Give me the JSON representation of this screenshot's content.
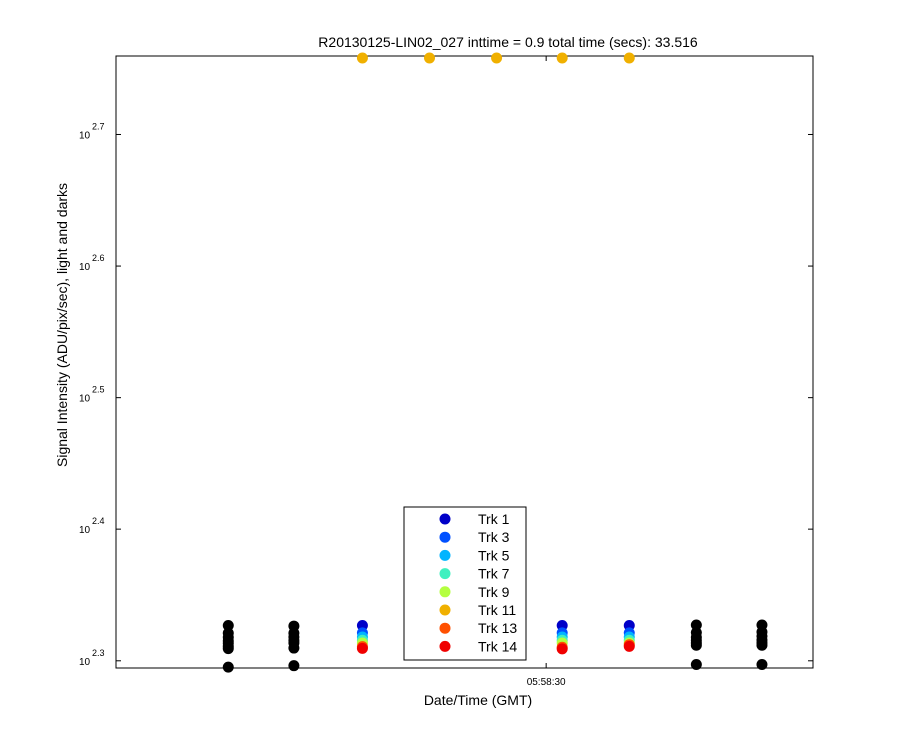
{
  "chart_data": {
    "type": "scatter",
    "title": "R20130125-LIN02_027 inttime = 0.9 total time (secs): 33.516",
    "xlabel": "Date/Time (GMT)",
    "ylabel": "Signal Intensity (ADU/pix/sec), light and darks",
    "y_scale": "log",
    "ylim": [
      197,
      575
    ],
    "y_tick_base": "10",
    "y_ticks": [
      {
        "exp": "2.3",
        "value": 199.5
      },
      {
        "exp": "2.4",
        "value": 251.2
      },
      {
        "exp": "2.5",
        "value": 316.2
      },
      {
        "exp": "2.6",
        "value": 398.1
      },
      {
        "exp": "2.7",
        "value": 501.2
      }
    ],
    "x_unit": "seconds",
    "xlim": [
      0,
      47.8
    ],
    "x_ticks": [
      {
        "label": "05:58:30",
        "x": 29.5
      }
    ],
    "grid": false,
    "legend_placement": "bottom-center",
    "series": [
      {
        "name": "Trk 1",
        "color": "#0000c8",
        "points": [
          [
            16.9,
            212.2
          ],
          [
            30.6,
            212.2
          ],
          [
            35.2,
            212.2
          ]
        ]
      },
      {
        "name": "Trk 3",
        "color": "#0050ff",
        "points": [
          [
            16.9,
            209.5
          ],
          [
            30.6,
            209.5
          ],
          [
            35.2,
            209.5
          ]
        ]
      },
      {
        "name": "Trk 5",
        "color": "#00b4ff",
        "points": [
          [
            16.9,
            208.0
          ],
          [
            30.6,
            208.0
          ],
          [
            35.2,
            208.0
          ]
        ]
      },
      {
        "name": "Trk 7",
        "color": "#40f0c0",
        "points": [
          [
            16.9,
            206.8
          ],
          [
            30.6,
            206.8
          ],
          [
            35.2,
            206.8
          ]
        ]
      },
      {
        "name": "Trk 9",
        "color": "#b4ff40",
        "points": [
          [
            16.9,
            205.8
          ],
          [
            30.6,
            205.8
          ],
          [
            35.2,
            205.8
          ]
        ]
      },
      {
        "name": "Trk 11",
        "color": "#f0b000",
        "points": [
          [
            16.9,
            573
          ],
          [
            21.5,
            573
          ],
          [
            26.1,
            573
          ],
          [
            30.6,
            573
          ],
          [
            35.2,
            573
          ]
        ]
      },
      {
        "name": "Trk 13",
        "color": "#ff5000",
        "points": [
          [
            16.9,
            204.5
          ],
          [
            30.6,
            204.3
          ],
          [
            35.2,
            205.2
          ]
        ]
      },
      {
        "name": "Trk 14",
        "color": "#f00000",
        "points": [
          [
            16.9,
            203.9
          ],
          [
            30.6,
            203.7
          ],
          [
            35.2,
            204.6
          ]
        ]
      },
      {
        "name": "",
        "color": "#000000",
        "points": [
          [
            7.7,
            212.2
          ],
          [
            7.7,
            209.4
          ],
          [
            7.7,
            207.9
          ],
          [
            7.7,
            206.6
          ],
          [
            7.7,
            205.7
          ],
          [
            7.7,
            204.6
          ],
          [
            7.7,
            203.8
          ],
          [
            7.7,
            197.3
          ],
          [
            12.2,
            212.0
          ],
          [
            12.2,
            209.4
          ],
          [
            12.2,
            208.0
          ],
          [
            12.2,
            206.7
          ],
          [
            12.2,
            205.8
          ],
          [
            12.2,
            204.0
          ],
          [
            12.2,
            197.8
          ],
          [
            39.8,
            212.4
          ],
          [
            39.8,
            209.6
          ],
          [
            39.8,
            207.9
          ],
          [
            39.8,
            206.8
          ],
          [
            39.8,
            205.8
          ],
          [
            39.8,
            205.0
          ],
          [
            39.8,
            198.2
          ],
          [
            44.3,
            212.4
          ],
          [
            44.3,
            209.8
          ],
          [
            44.3,
            208.3
          ],
          [
            44.3,
            206.9
          ],
          [
            44.3,
            205.9
          ],
          [
            44.3,
            205.0
          ],
          [
            44.3,
            198.2
          ]
        ]
      }
    ]
  }
}
